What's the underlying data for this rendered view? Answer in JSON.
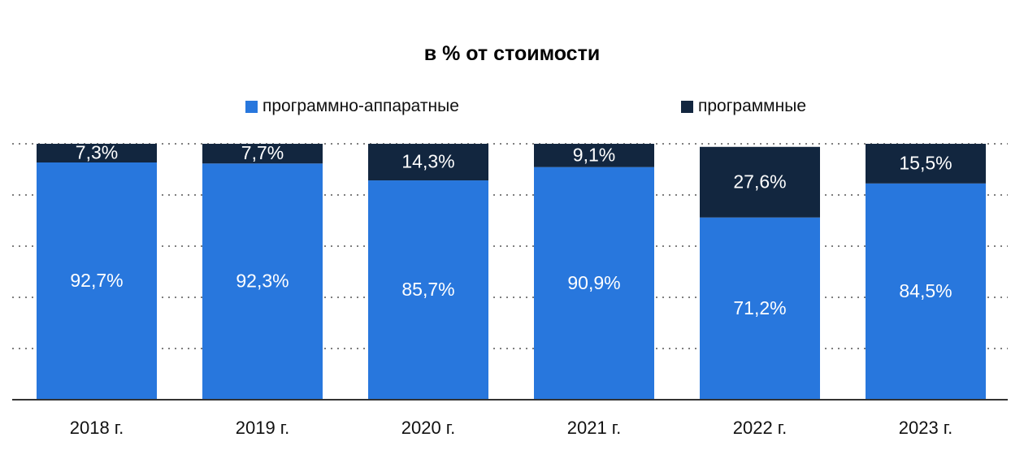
{
  "chart_data": {
    "type": "bar",
    "stacked": true,
    "title": "в % от стоимости",
    "categories": [
      "2018 г.",
      "2019 г.",
      "2020 г.",
      "2021 г.",
      "2022 г.",
      "2023 г."
    ],
    "series": [
      {
        "name": "программно-аппаратные",
        "color": "#2877DD",
        "values": [
          92.7,
          92.3,
          85.7,
          90.9,
          71.2,
          84.5
        ],
        "labels": [
          "92,7%",
          "92,3%",
          "85,7%",
          "90,9%",
          "71,2%",
          "84,5%"
        ]
      },
      {
        "name": "программные",
        "color": "#12263F",
        "values": [
          7.3,
          7.7,
          14.3,
          9.1,
          27.6,
          15.5
        ],
        "labels": [
          "7,3%",
          "7,7%",
          "14,3%",
          "9,1%",
          "27,6%",
          "15,5%"
        ]
      }
    ],
    "ylim": [
      0,
      100
    ],
    "grid": true,
    "legend": "top"
  }
}
